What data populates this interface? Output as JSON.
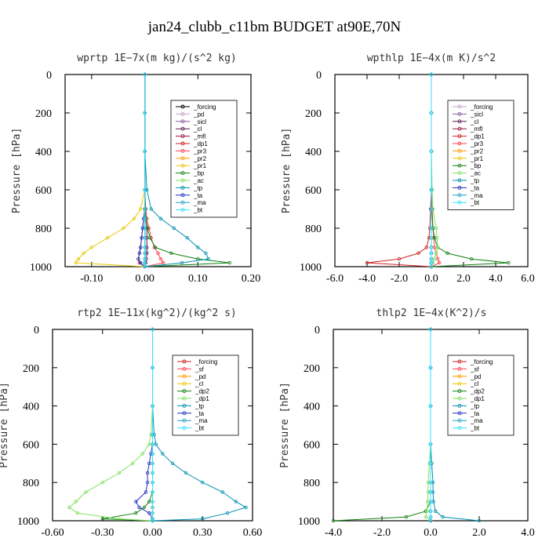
{
  "figure": {
    "title": "jan24_clubb_c11bm  BUDGET at90E,70N"
  },
  "chart_data": [
    {
      "type": "line",
      "title": "wprtp   1E−7x(m kg)/(s^2 kg)",
      "ylabel": "Pressure [hPa]",
      "xlabel": "",
      "xlim": [
        -0.15,
        0.2
      ],
      "ylim": [
        1000,
        0
      ],
      "xticks": [
        "-0.10",
        "0.00",
        "0.10",
        "0.20"
      ],
      "xtick_values": [
        -0.1,
        0.0,
        0.1,
        0.2
      ],
      "yticks": [
        "0",
        "200",
        "400",
        "600",
        "800",
        "1000"
      ],
      "ytick_values": [
        0,
        200,
        400,
        600,
        800,
        1000
      ],
      "legend_position": "upper-right",
      "y": [
        0,
        200,
        400,
        600,
        700,
        750,
        800,
        850,
        900,
        930,
        960,
        980,
        1000
      ],
      "series": [
        {
          "name": "_forcing",
          "color": "#000000",
          "values": [
            0,
            0,
            0,
            0,
            0,
            0,
            0,
            0,
            0,
            0,
            0,
            0,
            0
          ]
        },
        {
          "name": "_pd",
          "color": "#c8a0c8",
          "values": [
            0,
            0,
            0,
            0,
            0,
            0,
            0,
            0,
            0,
            0,
            0,
            0,
            0
          ]
        },
        {
          "name": "_sicl",
          "color": "#8a5aa0",
          "values": [
            0,
            0,
            0,
            0,
            0,
            0,
            0,
            0,
            0,
            0,
            0,
            0,
            0
          ]
        },
        {
          "name": "_cl",
          "color": "#5a1a50",
          "values": [
            0,
            0,
            0,
            0,
            0,
            0.002,
            0.004,
            0.004,
            0.004,
            0.004,
            0.003,
            0.002,
            0
          ]
        },
        {
          "name": "_mfl",
          "color": "#a01040",
          "values": [
            0,
            0,
            0,
            0,
            0,
            0,
            0,
            0,
            0,
            0,
            0,
            0,
            0
          ]
        },
        {
          "name": "_dp1",
          "color": "#d02020",
          "values": [
            0,
            0,
            0,
            0,
            0,
            -0.002,
            -0.004,
            -0.006,
            -0.008,
            -0.01,
            -0.012,
            -0.01,
            0
          ]
        },
        {
          "name": "_pr3",
          "color": "#ff4050",
          "values": [
            0,
            0,
            0,
            0,
            0.002,
            0.004,
            0.008,
            0.012,
            0.018,
            0.025,
            0.03,
            0.035,
            0
          ]
        },
        {
          "name": "_pr2",
          "color": "#ff9a00",
          "values": [
            0,
            0,
            0,
            0,
            0,
            0,
            0,
            0,
            0,
            0,
            0,
            0,
            0
          ]
        },
        {
          "name": "_pr1",
          "color": "#e8c800",
          "values": [
            0,
            0,
            0,
            0,
            -0.008,
            -0.02,
            -0.04,
            -0.07,
            -0.1,
            -0.115,
            -0.125,
            -0.13,
            0
          ]
        },
        {
          "name": "_bp",
          "color": "#108010",
          "values": [
            0,
            0,
            0,
            0,
            0.001,
            0.002,
            0.005,
            0.01,
            0.02,
            0.05,
            0.1,
            0.16,
            0
          ]
        },
        {
          "name": "_ac",
          "color": "#80e060",
          "values": [
            0,
            0,
            0,
            0,
            0,
            0,
            0,
            0,
            0,
            0,
            0,
            0,
            0
          ]
        },
        {
          "name": "_tp",
          "color": "#0090b0",
          "values": [
            0,
            0,
            0,
            0.004,
            0.012,
            0.03,
            0.055,
            0.08,
            0.1,
            0.115,
            0.12,
            0.07,
            0
          ]
        },
        {
          "name": "_ta",
          "color": "#2030c0",
          "values": [
            0,
            0,
            0,
            0,
            0,
            -0.002,
            -0.004,
            -0.006,
            -0.008,
            -0.01,
            -0.012,
            -0.008,
            0
          ]
        },
        {
          "name": "_ma",
          "color": "#20a0c0",
          "values": [
            0,
            0,
            0,
            0,
            0,
            0,
            0,
            0,
            0,
            0,
            0,
            0,
            0
          ]
        },
        {
          "name": "_bt",
          "color": "#30e0ff",
          "values": [
            0,
            0,
            0,
            0,
            0,
            0,
            0,
            0,
            0,
            0,
            0,
            0,
            0
          ]
        }
      ]
    },
    {
      "type": "line",
      "title": "wpthlp   1E−4x(m K)/s^2",
      "ylabel": "Pressure [hPa]",
      "xlabel": "",
      "xlim": [
        -6,
        6
      ],
      "ylim": [
        1000,
        0
      ],
      "xticks": [
        "-6.0",
        "-4.0",
        "-2.0",
        "0.0",
        "2.0",
        "4.0",
        "6.0"
      ],
      "xtick_values": [
        -6,
        -4,
        -2,
        0,
        2,
        4,
        6
      ],
      "yticks": [
        "0",
        "200",
        "400",
        "600",
        "800",
        "1000"
      ],
      "ytick_values": [
        0,
        200,
        400,
        600,
        800,
        1000
      ],
      "legend_position": "upper-right",
      "y": [
        0,
        200,
        400,
        600,
        700,
        800,
        850,
        900,
        930,
        960,
        980,
        1000
      ],
      "series": [
        {
          "name": "_forcing",
          "color": "#c8a0c8",
          "values": [
            0,
            0,
            0,
            0,
            0,
            0,
            0,
            0,
            0,
            0,
            0,
            0
          ]
        },
        {
          "name": "_sicl",
          "color": "#8a5aa0",
          "values": [
            0,
            0,
            0,
            0,
            0,
            0,
            0,
            0,
            0,
            0,
            0,
            0
          ]
        },
        {
          "name": "_cl",
          "color": "#5a1a50",
          "values": [
            0,
            0,
            0,
            0,
            0,
            0,
            0,
            0,
            0,
            0,
            0,
            0
          ]
        },
        {
          "name": "_mfl",
          "color": "#a01040",
          "values": [
            0,
            0,
            0,
            0,
            0,
            0,
            0,
            0,
            0,
            0,
            0,
            0
          ]
        },
        {
          "name": "_dp1",
          "color": "#d02020",
          "values": [
            0,
            0,
            0,
            0,
            -0.05,
            -0.1,
            -0.15,
            -0.3,
            -0.8,
            -2.0,
            -4.0,
            0
          ]
        },
        {
          "name": "_pr3",
          "color": "#ff4050",
          "values": [
            0,
            0,
            0,
            0,
            0.05,
            0.1,
            0.15,
            0.2,
            0.3,
            0.4,
            0.5,
            0
          ]
        },
        {
          "name": "_pr2",
          "color": "#ff9a00",
          "values": [
            0,
            0,
            0,
            0,
            0,
            0,
            0,
            0,
            0,
            0,
            0,
            0
          ]
        },
        {
          "name": "_pr1",
          "color": "#e8c800",
          "values": [
            0,
            0,
            0,
            0,
            0,
            0,
            0,
            0,
            0,
            0,
            0,
            0
          ]
        },
        {
          "name": "_bp",
          "color": "#108010",
          "values": [
            0,
            0,
            0,
            0,
            0.02,
            0.1,
            0.2,
            0.4,
            1.0,
            2.5,
            4.8,
            0
          ]
        },
        {
          "name": "_ac",
          "color": "#80e060",
          "values": [
            0,
            0,
            0,
            0.05,
            0.1,
            0.3,
            0.35,
            0.4,
            0.3,
            0.2,
            0.1,
            0
          ]
        },
        {
          "name": "_tp",
          "color": "#0090b0",
          "values": [
            0,
            0,
            0,
            0,
            0,
            0,
            0,
            0,
            0,
            0,
            0,
            0
          ]
        },
        {
          "name": "_ta",
          "color": "#2030c0",
          "values": [
            0,
            0,
            0,
            0,
            0,
            0,
            0,
            0,
            0,
            0,
            0,
            0
          ]
        },
        {
          "name": "_ma",
          "color": "#20a0c0",
          "values": [
            0,
            0,
            0,
            0,
            0,
            0,
            0,
            0,
            0,
            0,
            0,
            0
          ]
        },
        {
          "name": "_bt",
          "color": "#30e0ff",
          "values": [
            0,
            0,
            0,
            0,
            0,
            0,
            0,
            0,
            0,
            0,
            0,
            0
          ]
        }
      ]
    },
    {
      "type": "line",
      "title": "rtp2   1E−11x(kg^2)/(kg^2 s)",
      "ylabel": "Pressure [hPa]",
      "xlabel": "",
      "xlim": [
        -0.6,
        0.6
      ],
      "ylim": [
        1000,
        0
      ],
      "xticks": [
        "-0.60",
        "-0.30",
        "0.00",
        "0.30",
        "0.60"
      ],
      "xtick_values": [
        -0.6,
        -0.3,
        0.0,
        0.3,
        0.6
      ],
      "yticks": [
        "0",
        "200",
        "400",
        "600",
        "800",
        "1000"
      ],
      "ytick_values": [
        0,
        200,
        400,
        600,
        800,
        1000
      ],
      "legend_position": "upper-right",
      "y": [
        0,
        200,
        400,
        550,
        600,
        650,
        700,
        750,
        800,
        850,
        900,
        930,
        960,
        990,
        1000
      ],
      "series": [
        {
          "name": "_forcing",
          "color": "#d02020",
          "values": [
            0,
            0,
            0,
            0,
            0,
            0,
            0,
            0,
            0,
            0,
            0,
            0,
            0,
            0,
            0
          ]
        },
        {
          "name": "_sf",
          "color": "#ff4050",
          "values": [
            0,
            0,
            0,
            0,
            0,
            0,
            0,
            0,
            0,
            0,
            0,
            0,
            0,
            0,
            0
          ]
        },
        {
          "name": "_pd",
          "color": "#ff9a00",
          "values": [
            0,
            0,
            0,
            0,
            0,
            0,
            0,
            0,
            0,
            0,
            0,
            0,
            0,
            0,
            0
          ]
        },
        {
          "name": "_cl",
          "color": "#e8c800",
          "values": [
            0,
            0,
            0,
            0,
            0,
            0,
            0,
            0,
            0,
            0,
            0,
            0,
            0,
            0,
            0
          ]
        },
        {
          "name": "_dp2",
          "color": "#108010",
          "values": [
            0,
            0,
            0,
            0,
            0,
            0,
            0,
            0,
            0,
            0,
            -0.02,
            -0.05,
            -0.1,
            -0.3,
            0
          ]
        },
        {
          "name": "_dp1",
          "color": "#80e060",
          "values": [
            0,
            0,
            0,
            -0.01,
            -0.02,
            -0.06,
            -0.12,
            -0.2,
            -0.3,
            -0.4,
            -0.46,
            -0.5,
            -0.45,
            -0.2,
            0
          ]
        },
        {
          "name": "_tp",
          "color": "#0090b0",
          "values": [
            0,
            0,
            0,
            0.01,
            0.02,
            0.06,
            0.12,
            0.2,
            0.3,
            0.42,
            0.5,
            0.56,
            0.45,
            0.3,
            0
          ]
        },
        {
          "name": "_ta",
          "color": "#2030c0",
          "values": [
            0,
            0,
            0,
            0,
            0,
            -0.01,
            -0.02,
            -0.03,
            -0.03,
            -0.04,
            -0.1,
            -0.08,
            -0.02,
            0,
            0
          ]
        },
        {
          "name": "_ma",
          "color": "#20a0c0",
          "values": [
            0,
            0,
            0,
            0,
            0,
            0,
            0,
            0,
            0,
            0,
            0,
            0,
            0,
            0,
            0
          ]
        },
        {
          "name": "_bt",
          "color": "#30e0ff",
          "values": [
            0,
            0,
            0,
            0,
            0,
            0,
            0,
            0,
            0,
            0,
            0,
            0,
            0,
            0,
            0
          ]
        }
      ]
    },
    {
      "type": "line",
      "title": "thlp2   1E−4x(K^2)/s",
      "ylabel": "Pressure [hPa]",
      "xlabel": "",
      "xlim": [
        -4,
        4
      ],
      "ylim": [
        1000,
        0
      ],
      "xticks": [
        "-4.0",
        "-2.0",
        "0.0",
        "2.0",
        "4.0"
      ],
      "xtick_values": [
        -4,
        -2,
        0,
        2,
        4
      ],
      "yticks": [
        "0",
        "200",
        "400",
        "600",
        "800",
        "1000"
      ],
      "ytick_values": [
        0,
        200,
        400,
        600,
        800,
        1000
      ],
      "legend_position": "upper-right",
      "y": [
        0,
        200,
        400,
        600,
        700,
        800,
        850,
        900,
        950,
        980,
        1000
      ],
      "series": [
        {
          "name": "_forcing",
          "color": "#d02020",
          "values": [
            0,
            0,
            0,
            0,
            0,
            0,
            0,
            0,
            0,
            0,
            0
          ]
        },
        {
          "name": "_sf",
          "color": "#ff4050",
          "values": [
            0,
            0,
            0,
            0,
            0,
            0,
            0,
            0,
            0,
            0,
            0
          ]
        },
        {
          "name": "_pd",
          "color": "#ff9a00",
          "values": [
            0,
            0,
            0,
            0,
            0,
            0,
            0,
            0,
            0,
            0,
            0
          ]
        },
        {
          "name": "_cl",
          "color": "#e8c800",
          "values": [
            0,
            0,
            0,
            0,
            0,
            0,
            0,
            0,
            0,
            0,
            0
          ]
        },
        {
          "name": "_dp2",
          "color": "#108010",
          "values": [
            0,
            0,
            0,
            0,
            0,
            0,
            0,
            0,
            -0.2,
            -1.0,
            -4.0
          ]
        },
        {
          "name": "_dp1",
          "color": "#80e060",
          "values": [
            0,
            0,
            0,
            0,
            -0.05,
            -0.1,
            -0.1,
            -0.12,
            -0.15,
            -0.2,
            0
          ]
        },
        {
          "name": "_tp",
          "color": "#0090b0",
          "values": [
            0,
            0,
            0,
            0,
            0.05,
            0.1,
            0.1,
            0.12,
            0.2,
            0.5,
            2.0
          ]
        },
        {
          "name": "_ta",
          "color": "#2030c0",
          "values": [
            0,
            0,
            0,
            0,
            0,
            0,
            0,
            0,
            0,
            0,
            0
          ]
        },
        {
          "name": "_ma",
          "color": "#20a0c0",
          "values": [
            0,
            0,
            0,
            0,
            0,
            0,
            0,
            0,
            0,
            0,
            0
          ]
        },
        {
          "name": "_bt",
          "color": "#30e0ff",
          "values": [
            0,
            0,
            0,
            0,
            0,
            0,
            0,
            0,
            0,
            0,
            0
          ]
        }
      ]
    }
  ]
}
